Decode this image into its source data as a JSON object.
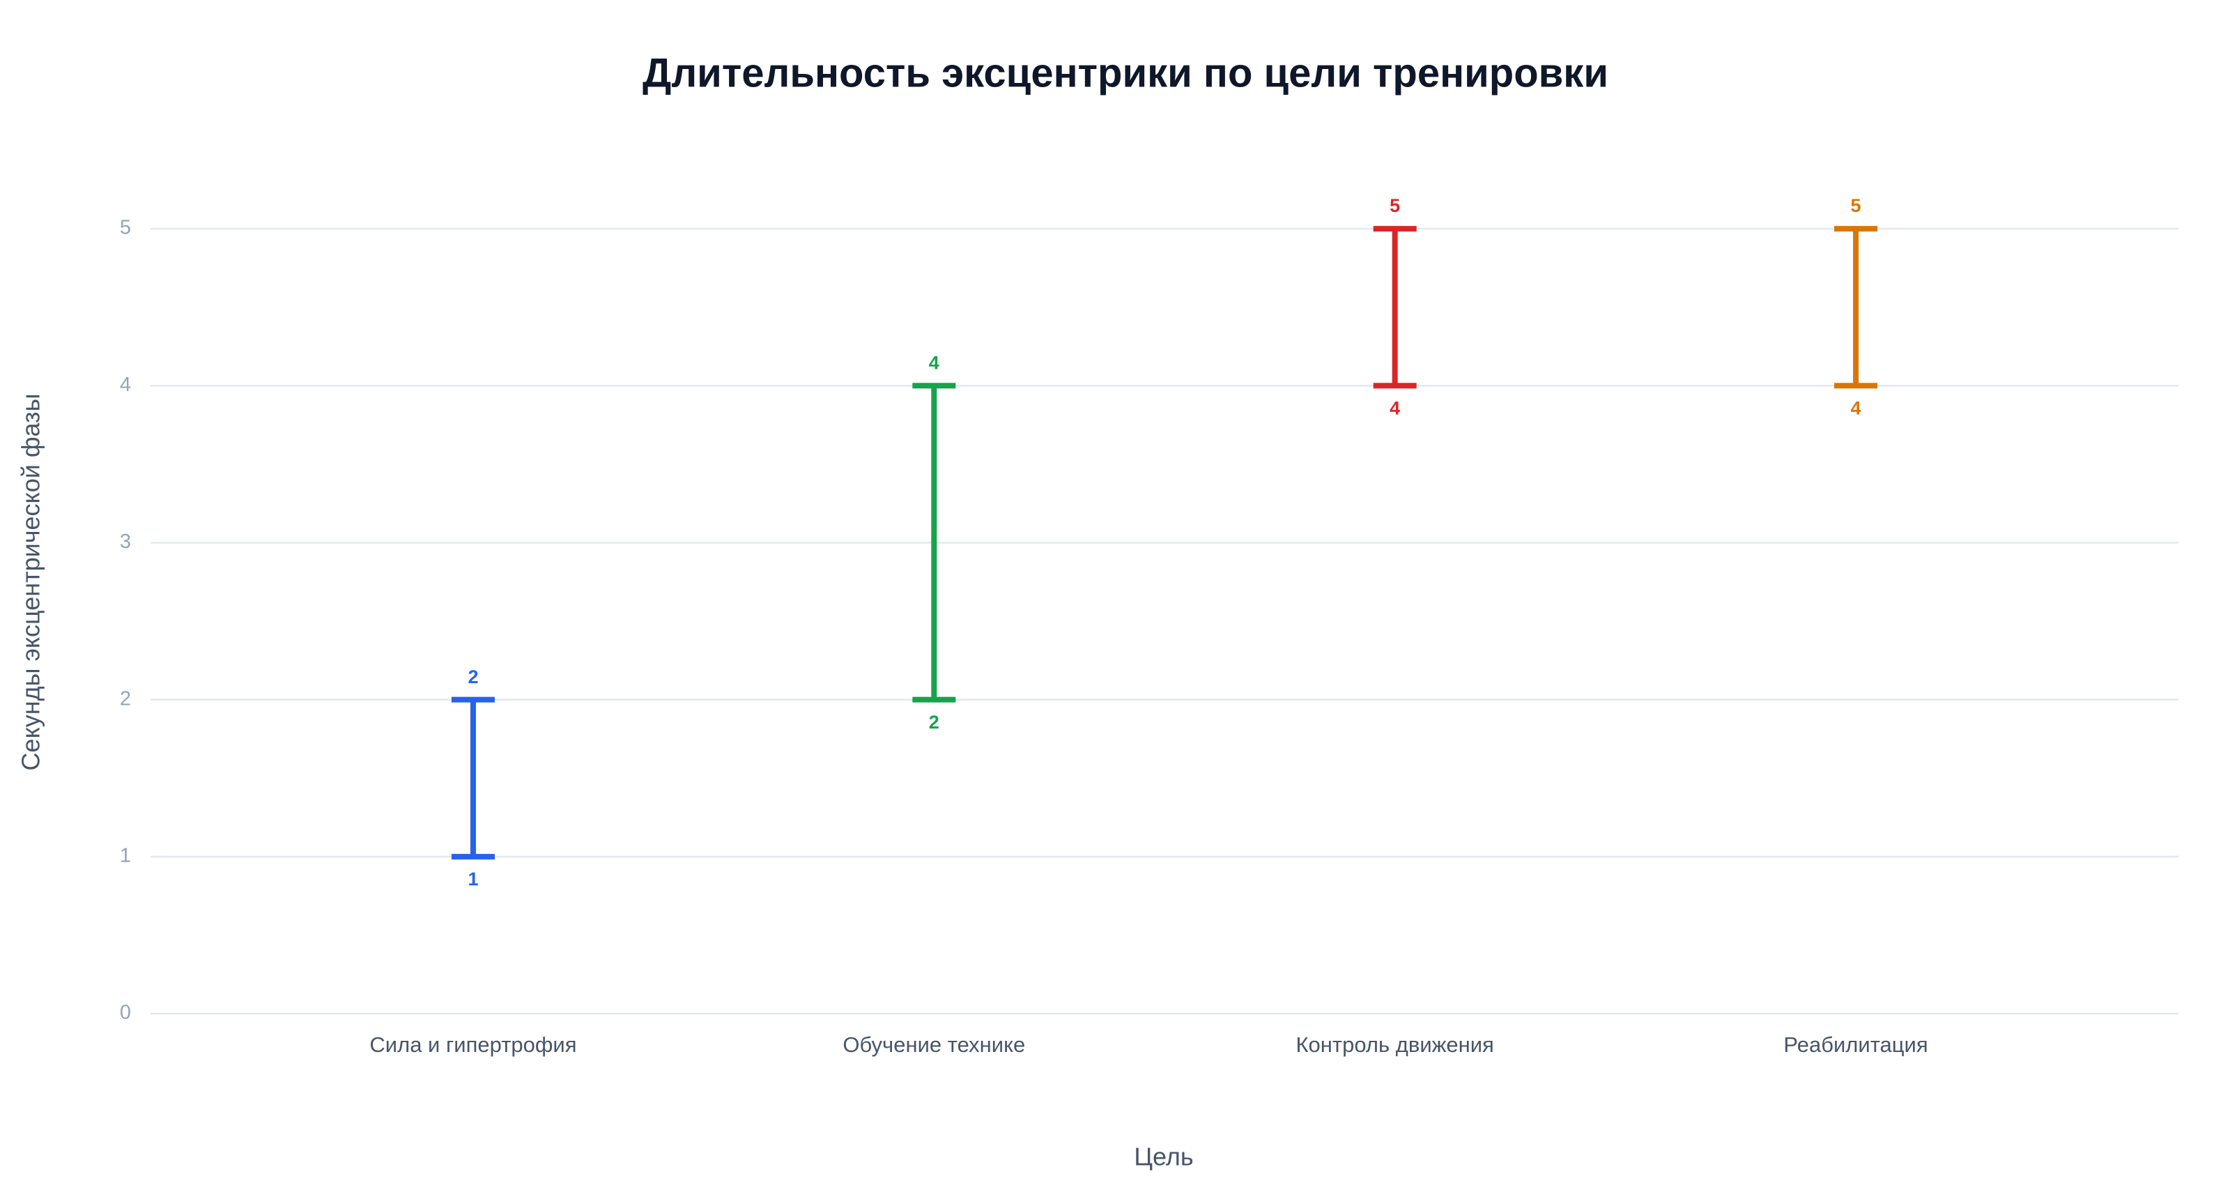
{
  "chart_data": {
    "type": "range",
    "title": "Длительность эксцентрики по цели тренировки",
    "x_label": "Цель",
    "y_label": "Секунды эксцентрической фазы",
    "categories": [
      "Сила и гипертрофия",
      "Обучение технике",
      "Контроль движения",
      "Реабилитация"
    ],
    "low": [
      1,
      2,
      4,
      4
    ],
    "high": [
      2,
      4,
      5,
      5
    ],
    "colors": [
      "#2563eb",
      "#16a34a",
      "#dc2626",
      "#d97706"
    ],
    "ylim": [
      0,
      5.4
    ],
    "yticks": [
      0,
      1,
      2,
      3,
      4,
      5
    ],
    "grid": true
  }
}
